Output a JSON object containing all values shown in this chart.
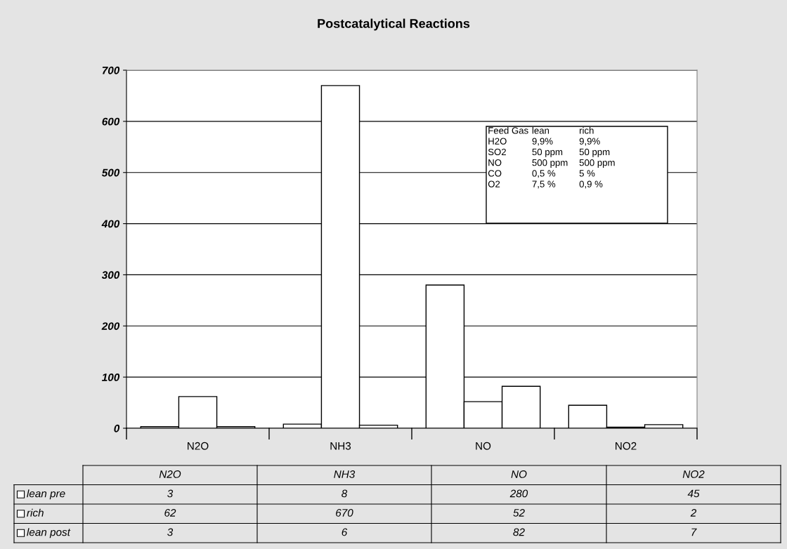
{
  "chart_data": {
    "type": "bar",
    "title": "Postcatalytical Reactions",
    "categories": [
      "N2O",
      "NH3",
      "NO",
      "NO2"
    ],
    "series": [
      {
        "name": "lean pre",
        "color": "#ffffff",
        "values": [
          3,
          8,
          280,
          45
        ]
      },
      {
        "name": "rich",
        "color": "#ffffff",
        "values": [
          62,
          670,
          52,
          2
        ]
      },
      {
        "name": "lean post",
        "color": "#ffffff",
        "values": [
          3,
          6,
          82,
          7
        ]
      }
    ],
    "ylim": [
      0,
      700
    ],
    "yticks": [
      0,
      100,
      200,
      300,
      400,
      500,
      600,
      700
    ],
    "grid": "y",
    "data_labels": true,
    "legend": "bottom left",
    "annotations": [
      "Feed Gas",
      "lean",
      "rich",
      "H2O",
      "9,9%",
      "9,9%",
      "SO2",
      "50 ppm",
      "50 ppm",
      "NO",
      "500 ppm",
      "500 ppm",
      "CO",
      "0,5 %",
      "5 %",
      "O2",
      "7,5 %",
      "0,9 %"
    ]
  }
}
